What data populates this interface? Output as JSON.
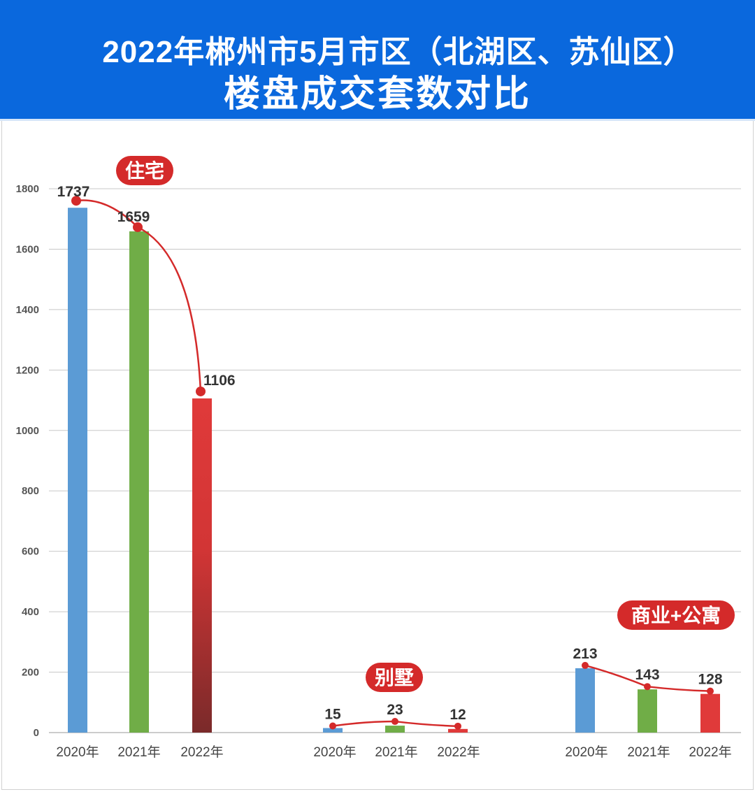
{
  "header": {
    "title_line1": "2022年郴州市5月市区（北湖区、苏仙区）",
    "title_line2": "楼盘成交套数对比"
  },
  "colors": {
    "header_bg": "#0a68dd",
    "bar_2020": "#5b9bd5",
    "bar_2021": "#70ad47",
    "bar_2022": "#e03a3a",
    "bar_2022_dark": "#7a2a2a",
    "trend_line": "#d42a2a",
    "badge": "#d42a2a"
  },
  "chart_data": {
    "type": "bar",
    "ylim": [
      0,
      1800
    ],
    "yticks": [
      "0",
      "200",
      "400",
      "600",
      "800",
      "1000",
      "1200",
      "1400",
      "1600",
      "1800"
    ],
    "grid": true,
    "groups": [
      {
        "name": "住宅",
        "categories": [
          "2020年",
          "2021年",
          "2022年"
        ],
        "values": [
          1737,
          1659,
          1106
        ],
        "labels": [
          "1737",
          "1659",
          "1106"
        ]
      },
      {
        "name": "别墅",
        "categories": [
          "2020年",
          "2021年",
          "2022年"
        ],
        "values": [
          15,
          23,
          12
        ],
        "labels": [
          "15",
          "23",
          "12"
        ]
      },
      {
        "name": "商业+公寓",
        "categories": [
          "2020年",
          "2021年",
          "2022年"
        ],
        "values": [
          213,
          143,
          128
        ],
        "labels": [
          "213",
          "143",
          "128"
        ]
      }
    ]
  }
}
